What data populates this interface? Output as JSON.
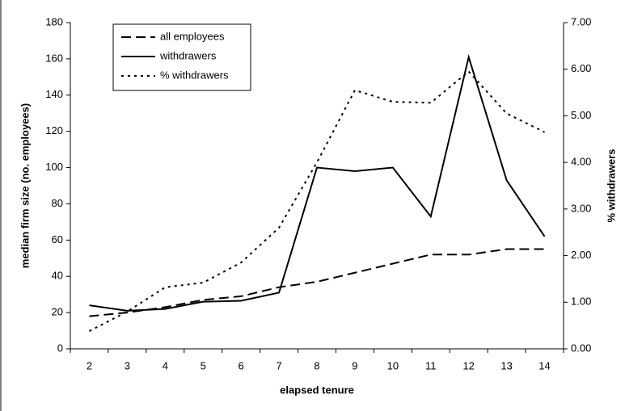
{
  "chart_data": {
    "type": "line",
    "categories": [
      "2",
      "3",
      "4",
      "5",
      "6",
      "7",
      "8",
      "9",
      "10",
      "11",
      "12",
      "13",
      "14"
    ],
    "x_label": "elapsed tenure",
    "y_label": "median firm size (no. employees)",
    "y2_label": "% withdrawers",
    "ylim": [
      0,
      180
    ],
    "yticks": [
      0,
      20,
      40,
      60,
      80,
      100,
      120,
      140,
      160,
      180
    ],
    "y2lim": [
      0,
      7
    ],
    "y2ticks": [
      {
        "value": 0,
        "label": "0.00"
      },
      {
        "value": 1,
        "label": "1.00"
      },
      {
        "value": 2,
        "label": "2.00"
      },
      {
        "value": 3,
        "label": "3.00"
      },
      {
        "value": 4,
        "label": "4.00"
      },
      {
        "value": 5,
        "label": "5.00"
      },
      {
        "value": 6,
        "label": "6.00"
      },
      {
        "value": 7,
        "label": "7.00"
      }
    ],
    "legend": "upper left",
    "series": [
      {
        "name": "all employees",
        "color": "#000000",
        "dash": "dashed",
        "values": [
          18,
          20,
          23,
          27,
          29,
          34,
          37,
          42,
          47,
          52,
          52,
          55,
          55
        ]
      },
      {
        "name": "withdrawers",
        "color": "#000000",
        "dash": "solid",
        "values": [
          24,
          21,
          22,
          26,
          26.5,
          31,
          100,
          98,
          100,
          73,
          161,
          93,
          62
        ]
      },
      {
        "name": "% withdrawers",
        "color": "#000000",
        "dash": "dotted",
        "axis": "y2",
        "values": [
          0.38,
          0.8,
          1.32,
          1.42,
          1.85,
          2.6,
          4.0,
          5.55,
          5.3,
          5.28,
          5.95,
          5.05,
          4.65
        ]
      }
    ]
  }
}
